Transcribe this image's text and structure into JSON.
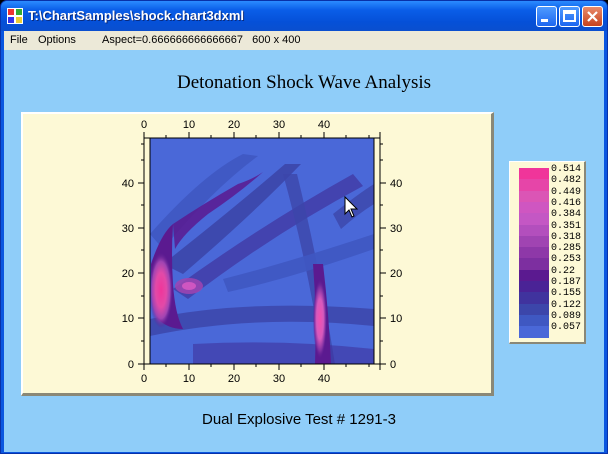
{
  "window": {
    "title": "T:\\ChartSamples\\shock.chart3dxml",
    "icon": "chart-app-icon",
    "buttons": [
      "minimize-icon",
      "maximize-icon",
      "close-icon"
    ]
  },
  "menu": {
    "file": "File",
    "options": "Options",
    "status": "Aspect=0.666666666666667   600 x 400"
  },
  "chart_data": {
    "type": "heatmap",
    "title": "Detonation Shock Wave Analysis",
    "caption": "Dual Explosive Test # 1291-3",
    "x_ticks": [
      "0",
      "10",
      "20",
      "30",
      "40"
    ],
    "y_ticks": [
      "0",
      "10",
      "20",
      "30",
      "40"
    ],
    "xlim": [
      0,
      50
    ],
    "ylim": [
      0,
      50
    ],
    "legend": [
      "0.514",
      "0.482",
      "0.449",
      "0.416",
      "0.384",
      "0.351",
      "0.318",
      "0.285",
      "0.253",
      "0.22",
      "0.187",
      "0.155",
      "0.122",
      "0.089",
      "0.057"
    ],
    "legend_colors": [
      "#f0359a",
      "#e645a8",
      "#db55b5",
      "#cf56c1",
      "#c457c4",
      "#b34fbd",
      "#a044b2",
      "#8e38a8",
      "#7d2fa0",
      "#5b1a90",
      "#4a2396",
      "#40339e",
      "#3c46aa",
      "#3f58c2",
      "#4a68d8"
    ]
  }
}
